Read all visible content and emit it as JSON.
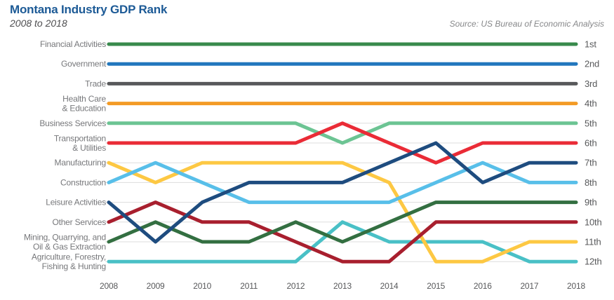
{
  "chart_data": {
    "type": "line",
    "variant": "bump-chart-rank",
    "title": "Montana Industry GDP Rank",
    "subtitle": "2008 to 2018",
    "source": "Source: US Bureau of Economic Analysis",
    "x": [
      2008,
      2009,
      2010,
      2011,
      2012,
      2013,
      2014,
      2015,
      2016,
      2017,
      2018
    ],
    "xlabel": "",
    "ylabel": "",
    "ylim": [
      1,
      12
    ],
    "y_inverted": true,
    "grid": true,
    "legend_position": "right",
    "rank_labels": [
      "1st",
      "2nd",
      "3rd",
      "4th",
      "5th",
      "6th",
      "7th",
      "8th",
      "9th",
      "10th",
      "11th",
      "12th"
    ],
    "series": [
      {
        "name": "Financial Activities",
        "color": "#388A4C",
        "ranks": [
          1,
          1,
          1,
          1,
          1,
          1,
          1,
          1,
          1,
          1,
          1
        ]
      },
      {
        "name": "Government",
        "color": "#2277BD",
        "ranks": [
          2,
          2,
          2,
          2,
          2,
          2,
          2,
          2,
          2,
          2,
          2
        ]
      },
      {
        "name": "Trade",
        "color": "#58595B",
        "ranks": [
          3,
          3,
          3,
          3,
          3,
          3,
          3,
          3,
          3,
          3,
          3
        ]
      },
      {
        "name": "Health Care & Education",
        "label_lines": [
          "Health Care",
          "& Education"
        ],
        "color": "#F39B25",
        "ranks": [
          4,
          4,
          4,
          4,
          4,
          4,
          4,
          4,
          4,
          4,
          4
        ]
      },
      {
        "name": "Business Services",
        "color": "#6CC493",
        "ranks": [
          5,
          5,
          5,
          5,
          5,
          6,
          5,
          5,
          5,
          5,
          5
        ]
      },
      {
        "name": "Transportation & Utilities",
        "label_lines": [
          "Transportation",
          "& Utilities"
        ],
        "color": "#EA2B36",
        "ranks": [
          6,
          6,
          6,
          6,
          6,
          5,
          6,
          7,
          6,
          6,
          6
        ]
      },
      {
        "name": "Manufacturing",
        "color": "#FDC843",
        "ranks": [
          7,
          8,
          7,
          7,
          7,
          7,
          8,
          12,
          12,
          11,
          11
        ]
      },
      {
        "name": "Construction",
        "color": "#58BFE9",
        "ranks": [
          8,
          7,
          8,
          9,
          9,
          9,
          9,
          8,
          7,
          8,
          8
        ]
      },
      {
        "name": "Leisure Activities",
        "color": "#1E4C7F",
        "ranks": [
          9,
          11,
          9,
          8,
          8,
          8,
          7,
          6,
          8,
          7,
          7
        ]
      },
      {
        "name": "Other Services",
        "color": "#A81F2E",
        "ranks": [
          10,
          9,
          10,
          10,
          11,
          12,
          12,
          10,
          10,
          10,
          10
        ]
      },
      {
        "name": "Mining, Quarrying, and Oil & Gas Extraction",
        "label_lines": [
          "Mining, Quarrying, and",
          "Oil & Gas Extraction"
        ],
        "color": "#336F41",
        "ranks": [
          11,
          10,
          11,
          11,
          10,
          11,
          10,
          9,
          9,
          9,
          9
        ]
      },
      {
        "name": "Agriculture, Forestry, Fishing & Hunting",
        "label_lines": [
          "Agriculture, Forestry,",
          "Fishing & Hunting"
        ],
        "color": "#49C0C6",
        "ranks": [
          12,
          12,
          12,
          12,
          12,
          10,
          11,
          11,
          11,
          12,
          12
        ]
      }
    ]
  },
  "colors": {
    "title": "#1C5A96",
    "subtitle": "#4E4E50",
    "source": "#87888A",
    "axis_label": "#58595B",
    "industry_label": "#77787B",
    "gridline": "#DDDDDD",
    "background": "#FFFFFF"
  }
}
